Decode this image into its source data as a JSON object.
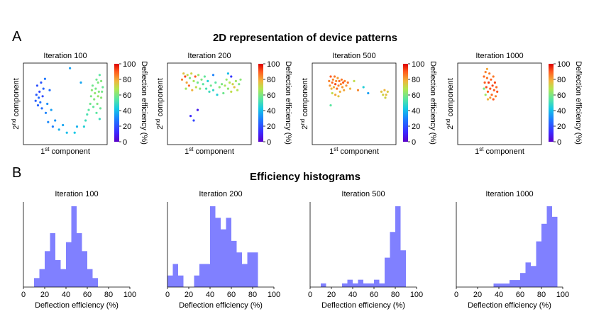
{
  "panel_a_label": "A",
  "panel_b_label": "B",
  "section_a_title": "2D representation of device patterns",
  "section_b_title": "Efficiency histograms",
  "colors": {
    "hist_fill": "#8080ff",
    "axis": "#000000"
  },
  "colorbar": {
    "label": "Deflection efficiency (%)",
    "ticks": [
      0,
      20,
      40,
      60,
      80,
      100
    ],
    "range": [
      0,
      100
    ]
  },
  "scatter_axis_labels": {
    "x": "1st component",
    "y": "2nd component"
  },
  "chart_data": [
    {
      "type": "scatter",
      "title": "Iteration 100",
      "xlabel": "1st component",
      "ylabel": "2nd component",
      "color_label": "Deflection efficiency (%)",
      "xlim": [
        0,
        1
      ],
      "ylim": [
        0,
        1
      ],
      "points": [
        [
          0.12,
          0.54,
          23
        ],
        [
          0.13,
          0.62,
          22
        ],
        [
          0.14,
          0.74,
          20
        ],
        [
          0.15,
          0.48,
          24
        ],
        [
          0.16,
          0.58,
          25
        ],
        [
          0.17,
          0.66,
          18
        ],
        [
          0.18,
          0.52,
          27
        ],
        [
          0.19,
          0.78,
          21
        ],
        [
          0.2,
          0.44,
          26
        ],
        [
          0.21,
          0.6,
          19
        ],
        [
          0.22,
          0.7,
          24
        ],
        [
          0.24,
          0.83,
          28
        ],
        [
          0.25,
          0.38,
          30
        ],
        [
          0.27,
          0.5,
          32
        ],
        [
          0.28,
          0.26,
          31
        ],
        [
          0.3,
          0.68,
          26
        ],
        [
          0.32,
          0.42,
          35
        ],
        [
          0.34,
          0.2,
          29
        ],
        [
          0.37,
          0.28,
          33
        ],
        [
          0.42,
          0.16,
          38
        ],
        [
          0.47,
          0.22,
          36
        ],
        [
          0.52,
          0.12,
          40
        ],
        [
          0.56,
          0.97,
          35
        ],
        [
          0.62,
          0.12,
          42
        ],
        [
          0.65,
          0.2,
          38
        ],
        [
          0.7,
          0.78,
          36
        ],
        [
          0.74,
          0.2,
          45
        ],
        [
          0.76,
          0.28,
          50
        ],
        [
          0.78,
          0.36,
          52
        ],
        [
          0.8,
          0.42,
          55
        ],
        [
          0.82,
          0.5,
          58
        ],
        [
          0.83,
          0.6,
          60
        ],
        [
          0.84,
          0.68,
          62
        ],
        [
          0.85,
          0.74,
          58
        ],
        [
          0.86,
          0.46,
          56
        ],
        [
          0.87,
          0.56,
          61
        ],
        [
          0.88,
          0.64,
          63
        ],
        [
          0.89,
          0.7,
          59
        ],
        [
          0.9,
          0.38,
          55
        ],
        [
          0.91,
          0.5,
          60
        ],
        [
          0.92,
          0.6,
          64
        ],
        [
          0.93,
          0.66,
          61
        ],
        [
          0.94,
          0.3,
          50
        ],
        [
          0.95,
          0.44,
          57
        ],
        [
          0.96,
          0.58,
          62
        ],
        [
          0.97,
          0.66,
          59
        ],
        [
          0.9,
          0.82,
          58
        ],
        [
          0.92,
          0.78,
          60
        ],
        [
          0.94,
          0.88,
          55
        ],
        [
          0.96,
          0.8,
          61
        ],
        [
          0.98,
          0.72,
          57
        ]
      ]
    },
    {
      "type": "scatter",
      "title": "Iteration 200",
      "xlabel": "1st component",
      "ylabel": "2nd component",
      "color_label": "Deflection efficiency (%)",
      "xlim": [
        0,
        1
      ],
      "ylim": [
        0,
        1
      ],
      "points": [
        [
          0.15,
          0.82,
          85
        ],
        [
          0.17,
          0.9,
          75
        ],
        [
          0.19,
          0.86,
          92
        ],
        [
          0.2,
          0.7,
          65
        ],
        [
          0.21,
          0.78,
          80
        ],
        [
          0.22,
          0.88,
          70
        ],
        [
          0.24,
          0.74,
          88
        ],
        [
          0.25,
          0.84,
          60
        ],
        [
          0.27,
          0.9,
          72
        ],
        [
          0.28,
          0.68,
          78
        ],
        [
          0.3,
          0.8,
          66
        ],
        [
          0.32,
          0.86,
          90
        ],
        [
          0.33,
          0.72,
          70
        ],
        [
          0.35,
          0.78,
          58
        ],
        [
          0.36,
          0.88,
          64
        ],
        [
          0.38,
          0.7,
          62
        ],
        [
          0.4,
          0.82,
          60
        ],
        [
          0.42,
          0.76,
          55
        ],
        [
          0.44,
          0.86,
          56
        ],
        [
          0.46,
          0.7,
          52
        ],
        [
          0.48,
          0.8,
          45
        ],
        [
          0.5,
          0.66,
          50
        ],
        [
          0.52,
          0.74,
          58
        ],
        [
          0.55,
          0.68,
          48
        ],
        [
          0.58,
          0.78,
          55
        ],
        [
          0.6,
          0.62,
          45
        ],
        [
          0.63,
          0.72,
          62
        ],
        [
          0.66,
          0.76,
          60
        ],
        [
          0.68,
          0.64,
          58
        ],
        [
          0.7,
          0.74,
          66
        ],
        [
          0.72,
          0.82,
          64
        ],
        [
          0.74,
          0.7,
          63
        ],
        [
          0.76,
          0.78,
          68
        ],
        [
          0.78,
          0.66,
          70
        ],
        [
          0.8,
          0.76,
          72
        ],
        [
          0.82,
          0.72,
          75
        ],
        [
          0.84,
          0.8,
          65
        ],
        [
          0.86,
          0.68,
          68
        ],
        [
          0.88,
          0.76,
          60
        ],
        [
          0.9,
          0.82,
          62
        ],
        [
          0.74,
          0.9,
          40
        ],
        [
          0.78,
          0.86,
          15
        ],
        [
          0.3,
          0.28,
          18
        ],
        [
          0.35,
          0.42,
          8
        ],
        [
          0.26,
          0.34,
          12
        ],
        [
          0.55,
          0.88,
          30
        ]
      ]
    },
    {
      "type": "scatter",
      "title": "Iteration 500",
      "xlabel": "1st component",
      "ylabel": "2nd component",
      "color_label": "Deflection efficiency (%)",
      "xlim": [
        0,
        1
      ],
      "ylim": [
        0,
        1
      ],
      "points": [
        [
          0.18,
          0.8,
          85
        ],
        [
          0.19,
          0.74,
          82
        ],
        [
          0.2,
          0.86,
          90
        ],
        [
          0.21,
          0.7,
          78
        ],
        [
          0.22,
          0.78,
          88
        ],
        [
          0.23,
          0.82,
          84
        ],
        [
          0.24,
          0.72,
          80
        ],
        [
          0.25,
          0.86,
          86
        ],
        [
          0.26,
          0.76,
          92
        ],
        [
          0.27,
          0.8,
          83
        ],
        [
          0.28,
          0.7,
          87
        ],
        [
          0.29,
          0.84,
          81
        ],
        [
          0.3,
          0.74,
          85
        ],
        [
          0.31,
          0.8,
          88
        ],
        [
          0.32,
          0.66,
          79
        ],
        [
          0.33,
          0.76,
          84
        ],
        [
          0.34,
          0.82,
          86
        ],
        [
          0.35,
          0.72,
          82
        ],
        [
          0.36,
          0.78,
          90
        ],
        [
          0.37,
          0.68,
          80
        ],
        [
          0.38,
          0.8,
          85
        ],
        [
          0.4,
          0.74,
          83
        ],
        [
          0.42,
          0.78,
          87
        ],
        [
          0.22,
          0.64,
          70
        ],
        [
          0.26,
          0.62,
          80
        ],
        [
          0.3,
          0.6,
          75
        ],
        [
          0.45,
          0.7,
          78
        ],
        [
          0.5,
          0.8,
          70
        ],
        [
          0.55,
          0.68,
          84
        ],
        [
          0.62,
          0.72,
          45
        ],
        [
          0.68,
          0.64,
          35
        ],
        [
          0.85,
          0.66,
          75
        ],
        [
          0.87,
          0.62,
          72
        ],
        [
          0.89,
          0.68,
          78
        ],
        [
          0.91,
          0.62,
          76
        ],
        [
          0.93,
          0.66,
          74
        ],
        [
          0.9,
          0.58,
          72
        ],
        [
          0.2,
          0.48,
          55
        ]
      ]
    },
    {
      "type": "scatter",
      "title": "Iteration 1000",
      "xlabel": "1st component",
      "ylabel": "2nd component",
      "color_label": "Deflection efficiency (%)",
      "xlim": [
        0,
        1
      ],
      "ylim": [
        0,
        1
      ],
      "points": [
        [
          0.3,
          0.86,
          88
        ],
        [
          0.31,
          0.78,
          90
        ],
        [
          0.32,
          0.92,
          85
        ],
        [
          0.33,
          0.72,
          92
        ],
        [
          0.34,
          0.84,
          87
        ],
        [
          0.35,
          0.66,
          90
        ],
        [
          0.36,
          0.78,
          94
        ],
        [
          0.37,
          0.9,
          86
        ],
        [
          0.38,
          0.7,
          91
        ],
        [
          0.39,
          0.82,
          89
        ],
        [
          0.4,
          0.62,
          88
        ],
        [
          0.41,
          0.74,
          93
        ],
        [
          0.42,
          0.86,
          86
        ],
        [
          0.43,
          0.68,
          90
        ],
        [
          0.44,
          0.78,
          92
        ],
        [
          0.45,
          0.6,
          85
        ],
        [
          0.46,
          0.72,
          88
        ],
        [
          0.47,
          0.66,
          91
        ],
        [
          0.34,
          0.96,
          80
        ],
        [
          0.32,
          0.62,
          65
        ],
        [
          0.3,
          0.7,
          60
        ],
        [
          0.35,
          0.56,
          78
        ],
        [
          0.38,
          0.58,
          82
        ],
        [
          0.42,
          0.56,
          90
        ]
      ]
    },
    {
      "type": "histogram",
      "title": "Iteration 100",
      "xlabel": "Deflection efficiency (%)",
      "ylabel": "",
      "xlim": [
        0,
        100
      ],
      "xticks": [
        0,
        20,
        40,
        60,
        80,
        100
      ],
      "bin_width": 5,
      "bins": [
        [
          10,
          1
        ],
        [
          15,
          2
        ],
        [
          20,
          4
        ],
        [
          25,
          6
        ],
        [
          30,
          3
        ],
        [
          35,
          2
        ],
        [
          40,
          5
        ],
        [
          45,
          9
        ],
        [
          50,
          6
        ],
        [
          55,
          4
        ],
        [
          60,
          2
        ],
        [
          65,
          1
        ]
      ]
    },
    {
      "type": "histogram",
      "title": "Iteration 200",
      "xlabel": "Deflection efficiency (%)",
      "ylabel": "",
      "xlim": [
        0,
        100
      ],
      "xticks": [
        0,
        20,
        40,
        60,
        80,
        100
      ],
      "bin_width": 5,
      "bins": [
        [
          0,
          1
        ],
        [
          5,
          2
        ],
        [
          10,
          1
        ],
        [
          25,
          1
        ],
        [
          30,
          2
        ],
        [
          35,
          2
        ],
        [
          40,
          7
        ],
        [
          45,
          6
        ],
        [
          50,
          5
        ],
        [
          55,
          6
        ],
        [
          60,
          4
        ],
        [
          65,
          3
        ],
        [
          70,
          2
        ],
        [
          75,
          3
        ],
        [
          80,
          3
        ]
      ]
    },
    {
      "type": "histogram",
      "title": "Iteration 500",
      "xlabel": "Deflection efficiency (%)",
      "ylabel": "",
      "xlim": [
        0,
        100
      ],
      "xticks": [
        0,
        20,
        40,
        60,
        80,
        100
      ],
      "bin_width": 5,
      "bins": [
        [
          10,
          1
        ],
        [
          30,
          1
        ],
        [
          35,
          2
        ],
        [
          40,
          1
        ],
        [
          45,
          2
        ],
        [
          50,
          1
        ],
        [
          55,
          1
        ],
        [
          60,
          2
        ],
        [
          65,
          1
        ],
        [
          70,
          8
        ],
        [
          75,
          15
        ],
        [
          80,
          22
        ],
        [
          85,
          10
        ]
      ]
    },
    {
      "type": "histogram",
      "title": "Iteration 1000",
      "xlabel": "Deflection efficiency (%)",
      "ylabel": "",
      "xlim": [
        0,
        100
      ],
      "xticks": [
        0,
        20,
        40,
        60,
        80,
        100
      ],
      "bin_width": 5,
      "bins": [
        [
          35,
          1
        ],
        [
          40,
          1
        ],
        [
          45,
          1
        ],
        [
          50,
          2
        ],
        [
          55,
          2
        ],
        [
          60,
          4
        ],
        [
          65,
          7
        ],
        [
          70,
          6
        ],
        [
          75,
          13
        ],
        [
          80,
          18
        ],
        [
          85,
          23
        ],
        [
          90,
          20
        ]
      ]
    }
  ]
}
